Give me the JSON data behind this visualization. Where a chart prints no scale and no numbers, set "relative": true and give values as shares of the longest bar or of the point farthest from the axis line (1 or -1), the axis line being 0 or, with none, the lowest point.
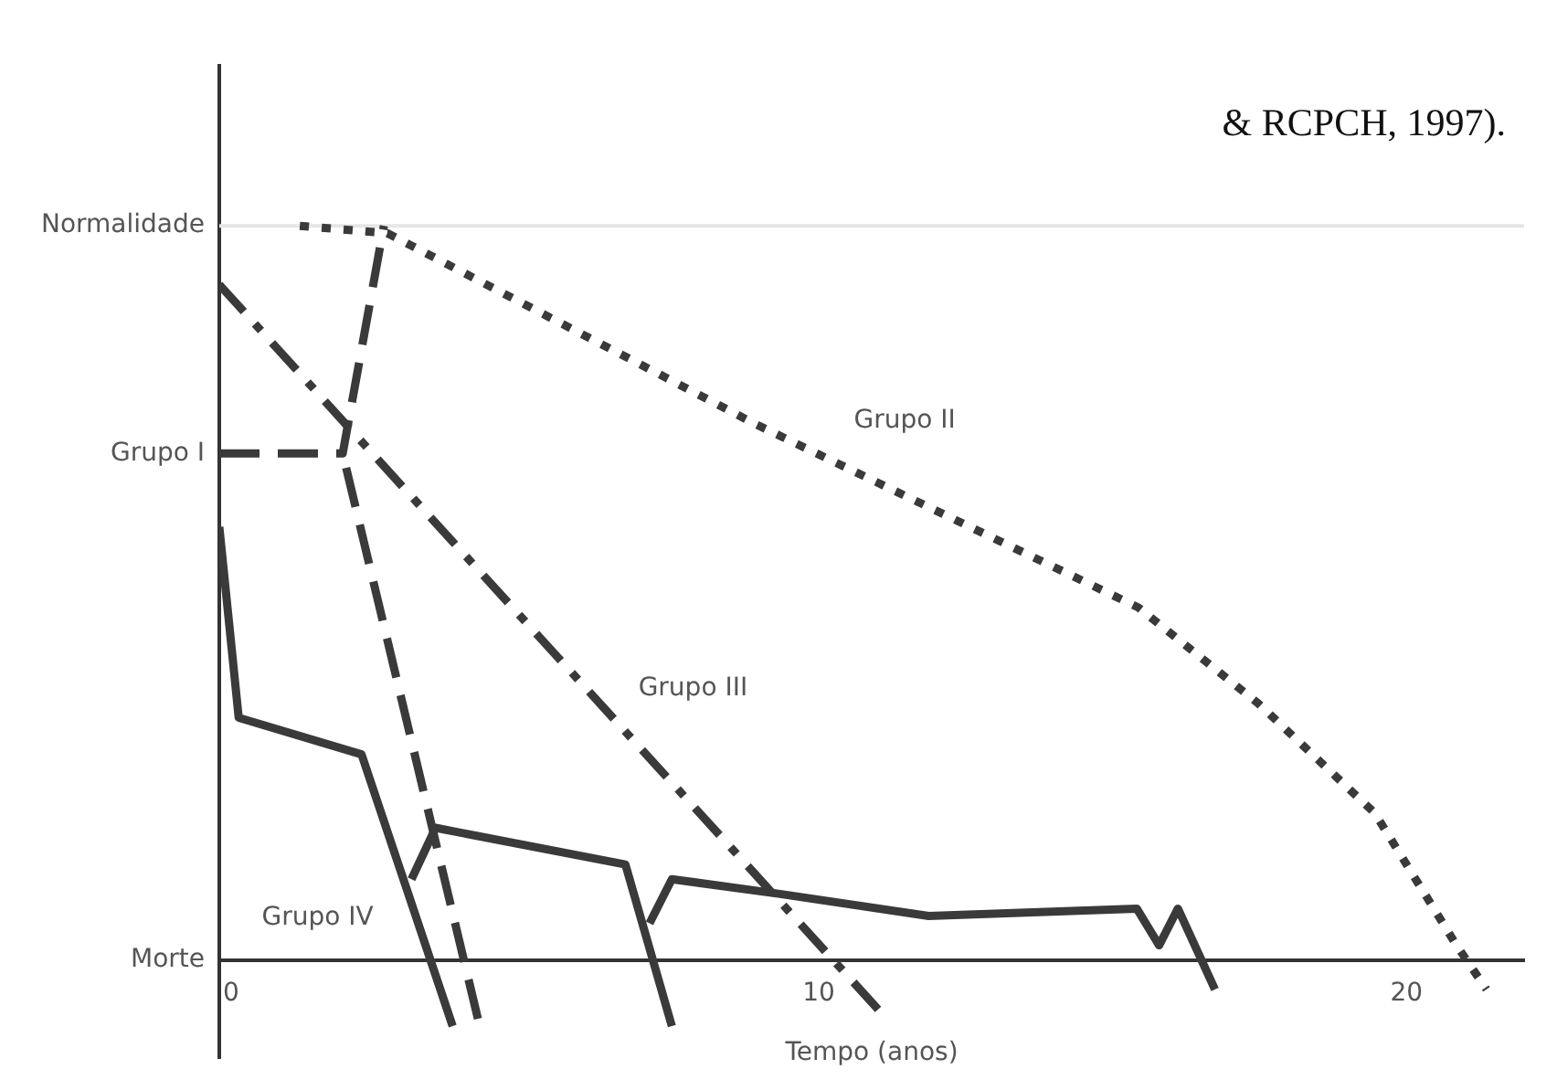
{
  "chart_data": {
    "type": "line",
    "relative": true,
    "xlabel": "Tempo (anos)",
    "xlim": [
      -0.2,
      22
    ],
    "xticks": [
      0,
      10,
      20
    ],
    "grid": false,
    "legend": false,
    "marker": "none",
    "ref_lines": [
      {
        "axis": "y",
        "value": 1,
        "label": "Normalidade",
        "color": "#e6e6e6"
      }
    ],
    "series": [
      {
        "name": "Grupo I",
        "color": "#3a3a3a",
        "line_style": "dashed",
        "x": [
          -0.2,
          1.9,
          2.6
        ],
        "values": [
          0.69,
          0.69,
          1.0
        ]
      },
      {
        "color": "#3a3a3a",
        "line_style": "dashed",
        "x": [
          4.2,
          1.9
        ],
        "values": [
          -0.08,
          0.69
        ]
      },
      {
        "name": "Grupo II",
        "color": "#3a3a3a",
        "line_style": "dotted",
        "x": [
          1.17,
          2.66,
          8.92,
          15.44,
          17.47,
          19.46,
          20.85,
          21.36
        ],
        "values": [
          1.0,
          0.99,
          0.73,
          0.48,
          0.35,
          0.2,
          0.02,
          -0.04
        ]
      },
      {
        "name": "Grupo III",
        "color": "#3a3a3a",
        "line_style": "dashdot",
        "x": [
          -0.2,
          1.95,
          11.04
        ],
        "values": [
          0.92,
          0.73,
          -0.07
        ]
      },
      {
        "name": "Grupo IV",
        "color": "#3a3a3a",
        "line_style": "solid",
        "x": [
          -0.2,
          0.13,
          2.22,
          3.77
        ],
        "values": [
          0.59,
          0.33,
          0.28,
          -0.09
        ]
      },
      {
        "color": "#3a3a3a",
        "line_style": "solid",
        "x": [
          3.07,
          3.48,
          6.71,
          7.5
        ],
        "values": [
          0.11,
          0.18,
          0.13,
          -0.09
        ]
      },
      {
        "color": "#3a3a3a",
        "line_style": "solid",
        "x": [
          7.12,
          7.5,
          9.34,
          11.87,
          15.41,
          15.79,
          16.11,
          16.74
        ],
        "values": [
          0.05,
          0.11,
          0.09,
          0.06,
          0.07,
          0.02,
          0.07,
          -0.04
        ]
      }
    ],
    "annotations": [
      "& RCPCH, 1997).",
      "Morte"
    ]
  }
}
